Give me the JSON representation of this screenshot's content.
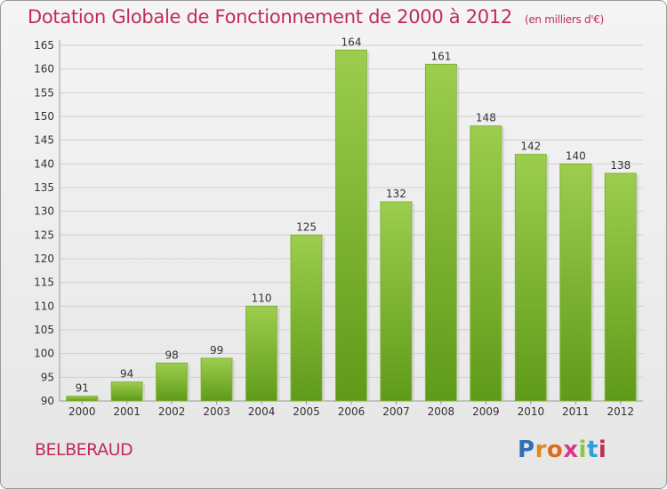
{
  "header": {
    "title": "Dotation Globale de Fonctionnement de 2000 à 2012",
    "unit": "(en milliers d'€)"
  },
  "footer": {
    "place": "BELBERAUD",
    "logo_letters": [
      "P",
      "r",
      "o",
      "x",
      "i",
      "t",
      "i"
    ],
    "logo_colors": [
      "#2f6fb8",
      "#e08a1e",
      "#e06a1c",
      "#d63a8a",
      "#8cc63e",
      "#2f9fd6",
      "#c02d55"
    ]
  },
  "colors": {
    "accent": "#c02d55",
    "bar_top": "#9ccd4e",
    "bar_bottom": "#5f9a19",
    "grid": "#cfcfcf"
  },
  "chart_data": {
    "type": "bar",
    "categories": [
      "2000",
      "2001",
      "2002",
      "2003",
      "2004",
      "2005",
      "2006",
      "2007",
      "2008",
      "2009",
      "2010",
      "2011",
      "2012"
    ],
    "values": [
      91,
      94,
      98,
      99,
      110,
      125,
      164,
      132,
      161,
      148,
      142,
      140,
      138
    ],
    "ylim": [
      90,
      165
    ],
    "yticks": [
      90,
      95,
      100,
      105,
      110,
      115,
      120,
      125,
      130,
      135,
      140,
      145,
      150,
      155,
      160,
      165
    ],
    "grid": true,
    "title": "Dotation Globale de Fonctionnement de 2000 à 2012",
    "xlabel": "",
    "ylabel": ""
  }
}
